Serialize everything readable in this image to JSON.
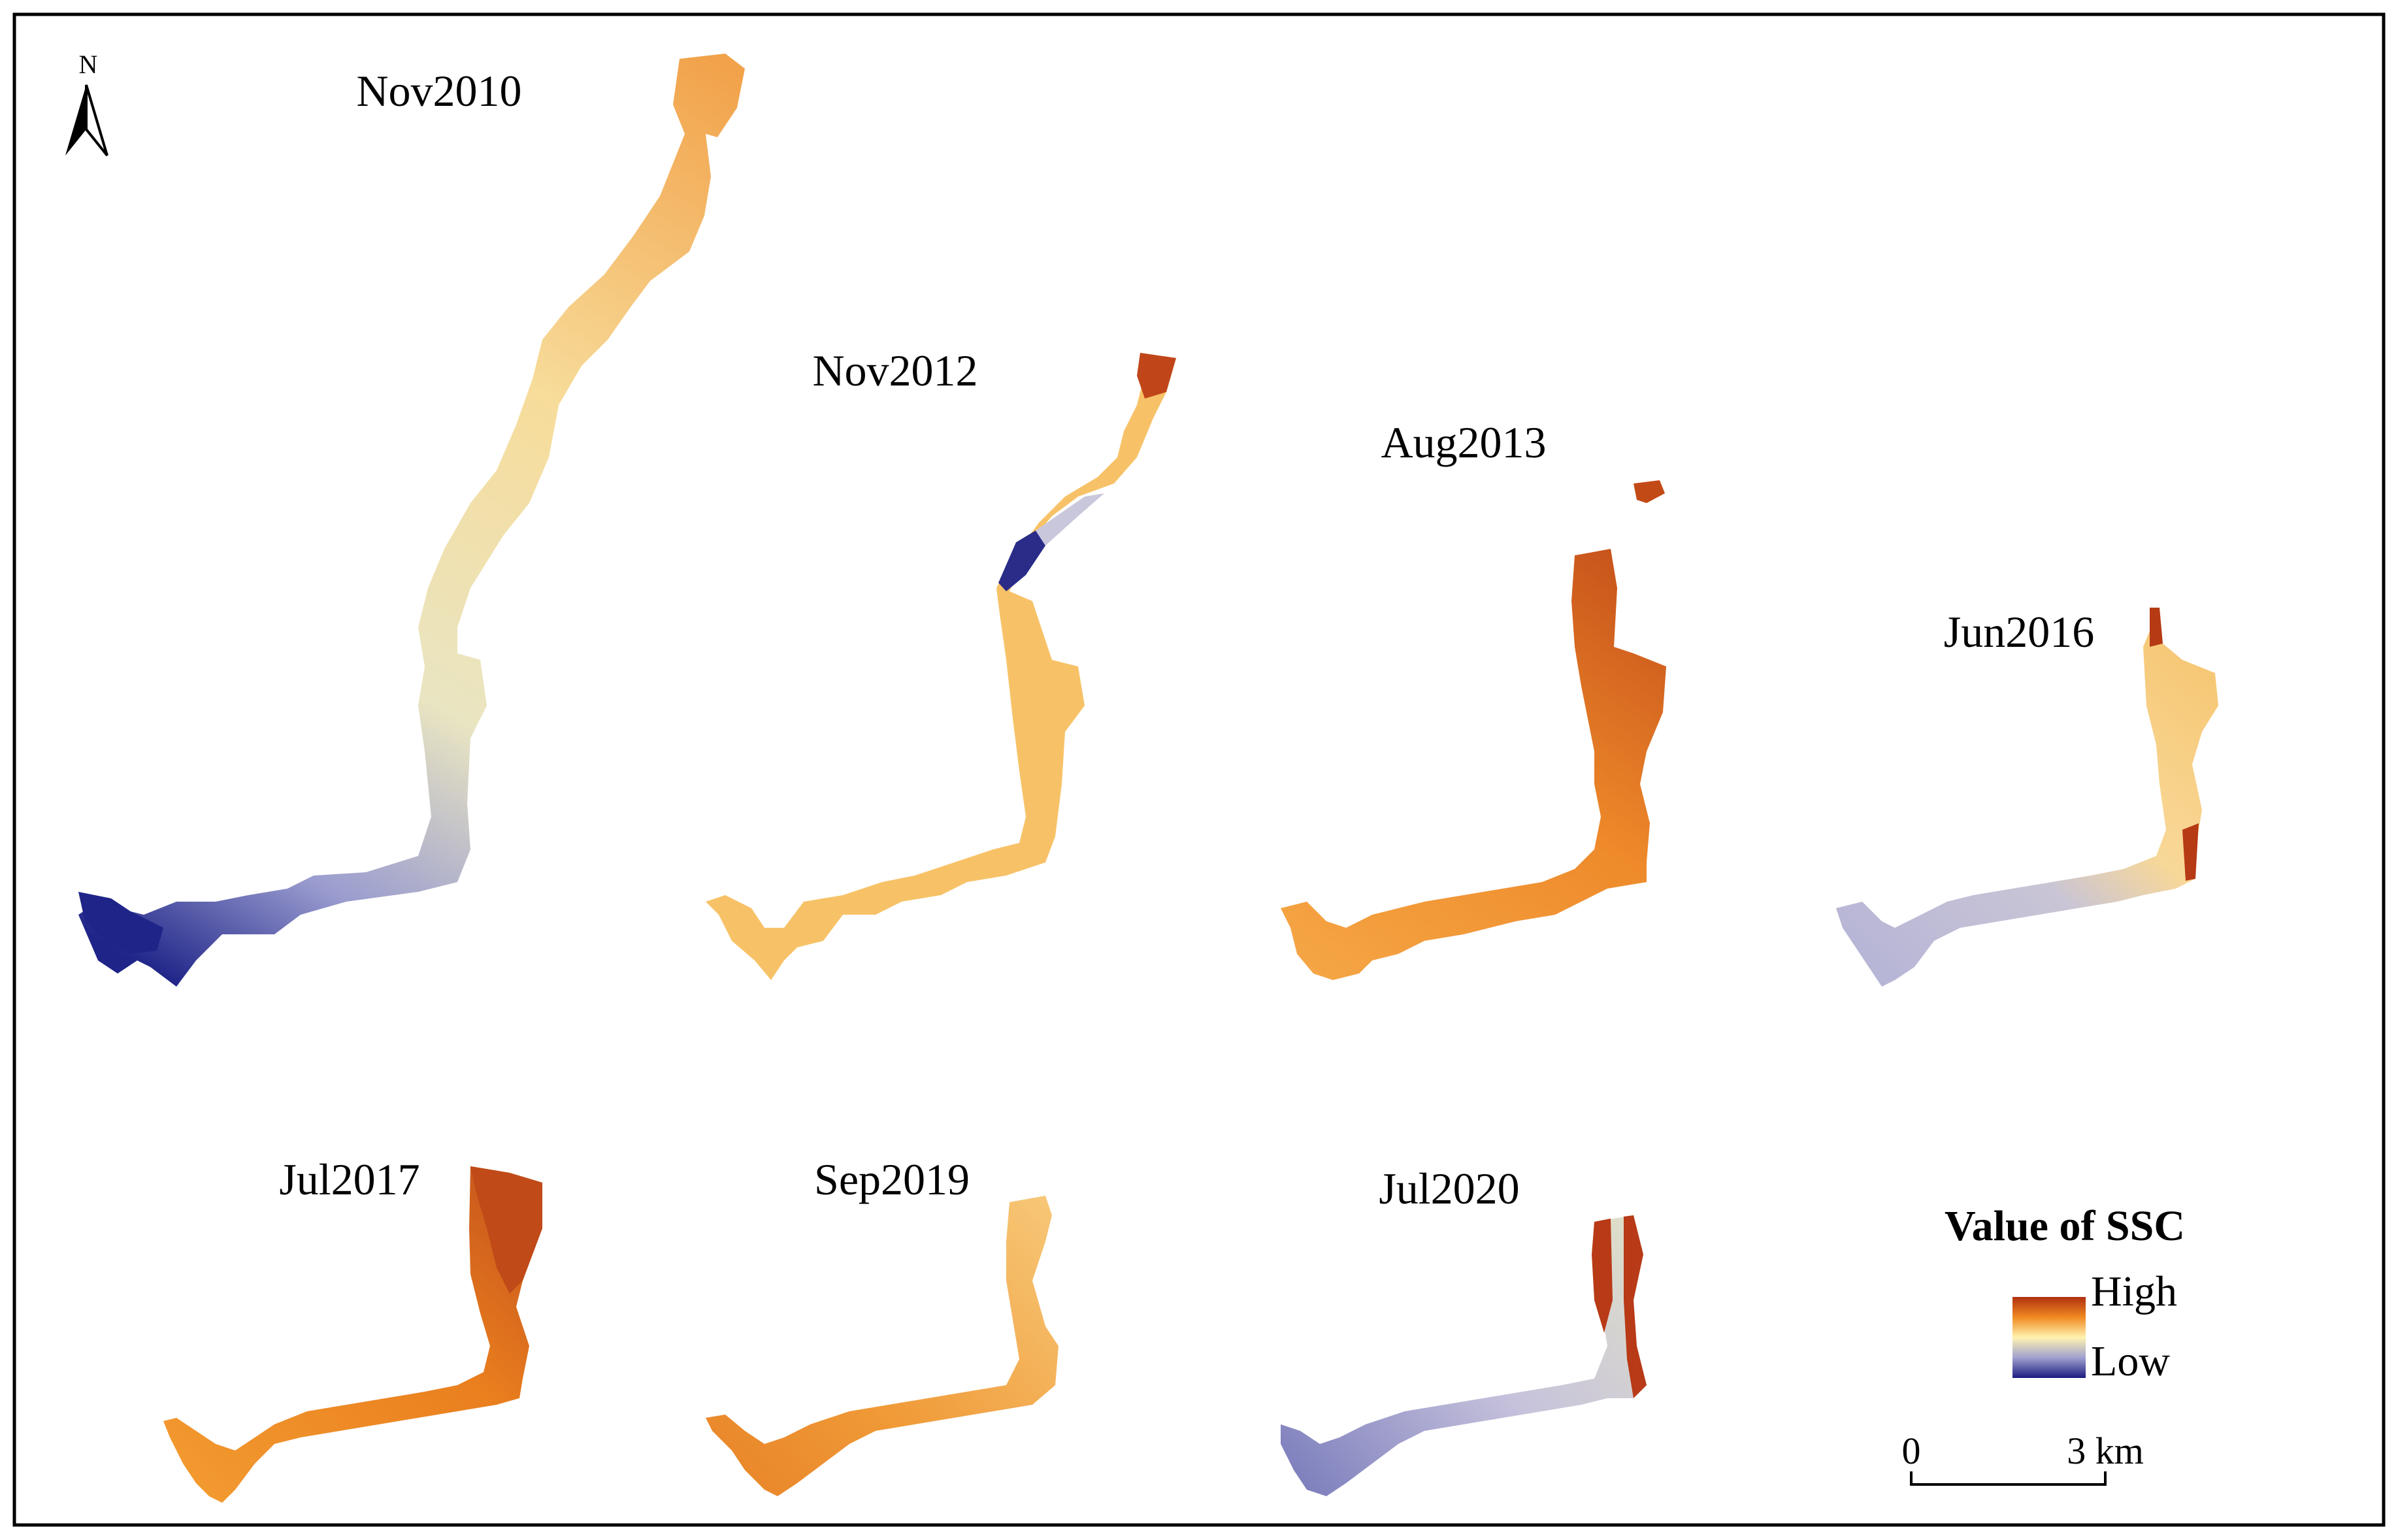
{
  "panels": [
    {
      "id": "nov2010",
      "label": "Nov2010"
    },
    {
      "id": "nov2012",
      "label": "Nov2012"
    },
    {
      "id": "aug2013",
      "label": "Aug2013"
    },
    {
      "id": "jun2016",
      "label": "Jun2016"
    },
    {
      "id": "jul2017",
      "label": "Jul2017"
    },
    {
      "id": "sep2019",
      "label": "Sep2019"
    },
    {
      "id": "jul2020",
      "label": "Jul2020"
    }
  ],
  "north_arrow": {
    "label": "N"
  },
  "legend": {
    "title": "Value of SSC",
    "high": "High",
    "low": "Low",
    "colors": {
      "high": "#b03010",
      "mid_high": "#f08a20",
      "mid": "#fff3b0",
      "mid_low": "#a0a0d0",
      "low": "#1c1c80"
    }
  },
  "scale_bar": {
    "start": "0",
    "end": "3 km"
  }
}
